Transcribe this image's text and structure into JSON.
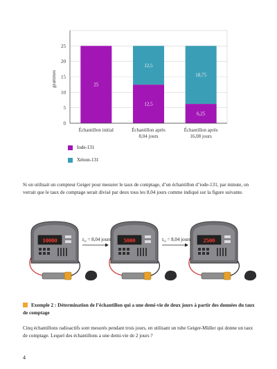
{
  "chart_data": {
    "type": "bar",
    "ylabel": "grammes",
    "ylim": [
      0,
      30
    ],
    "yticks": [
      0,
      5,
      10,
      15,
      20,
      25
    ],
    "categories": [
      "Échantillon initial",
      "Échantillon après 8,04 jours",
      "Échantillon après 16,08 jours"
    ],
    "category_lines": [
      [
        "Échantillon initial"
      ],
      [
        "Échantillon après",
        "8,04 jours"
      ],
      [
        "Échantillon après",
        "16,08 jours"
      ]
    ],
    "series": [
      {
        "name": "Iode-131",
        "color": "#a216b6",
        "values": [
          25,
          12.5,
          6.25
        ],
        "labels": [
          "25",
          "12,5",
          "6,25"
        ]
      },
      {
        "name": "Xénon-131",
        "color": "#3a9fb6",
        "values": [
          0,
          12.5,
          18.75
        ],
        "labels": [
          "",
          "12,5",
          "18,75"
        ]
      }
    ],
    "grid": true
  },
  "legend": [
    {
      "label": "Iode-131",
      "color": "#a216b6"
    },
    {
      "label": "Xénon-131",
      "color": "#3a9fb6"
    }
  ],
  "paragraph1": "Si on utilisait un compteur Geiger pour mesurer le taux de comptage, d’un échantillon d’iode-131, par minute, on verrait que le taux de comptage serait divisé par deux tous les 8,04 jours comme indiqué sur la figure suivante.",
  "counters": [
    "10000",
    "5000",
    "2500"
  ],
  "arrow_label": {
    "symbol": "t",
    "subscript": "½",
    "text": " = 8,04 jours"
  },
  "example_heading": "Exemple 2 : Détermination de l’échantillon qui a une demi-vie de deux jours à partir des données du taux de comptage",
  "paragraph2": "Cinq échantillons radioactifs sont mesurés pendant trois jours, en utilisant un tube Geiger-Müller qui donne un taux de comptage. Lequel des échantillons a une demi-vie de 2 jours ?",
  "page_number": "4"
}
